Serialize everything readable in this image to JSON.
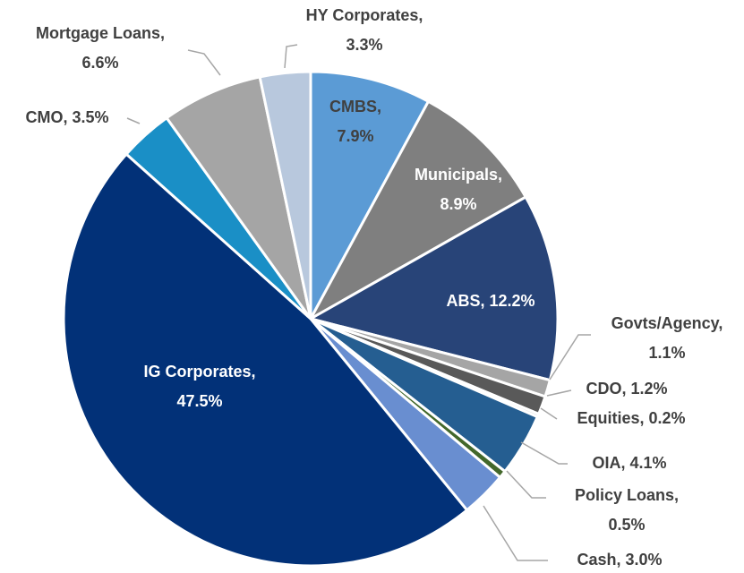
{
  "chart_data": {
    "type": "pie",
    "categories": [
      "CMBS,",
      "Municipals,",
      "ABS,",
      "Govts/Agency,",
      "CDO,",
      "Equities,",
      "OIA,",
      "Policy Loans,",
      "Cash,",
      "IG Corporates,",
      "CMO,",
      "Mortgage Loans,",
      "HY Corporates,"
    ],
    "values": [
      7.9,
      8.9,
      12.2,
      1.1,
      1.2,
      0.2,
      4.1,
      0.5,
      3.0,
      47.5,
      3.5,
      6.6,
      3.3
    ],
    "value_labels": [
      "7.9%",
      "8.9%",
      "12.2%",
      "1.1%",
      "1.2%",
      "0.2%",
      "4.1%",
      "0.5%",
      "3.0%",
      "47.5%",
      "3.5%",
      "6.6%",
      "3.3%"
    ],
    "colors": [
      "#5b9bd5",
      "#7f7f7f",
      "#284478",
      "#a5a5a5",
      "#595959",
      "#d9d9d9",
      "#255e91",
      "#43682b",
      "#698ed0",
      "#023178",
      "#1a8fc6",
      "#a5a5a5",
      "#b8c8dd"
    ]
  }
}
